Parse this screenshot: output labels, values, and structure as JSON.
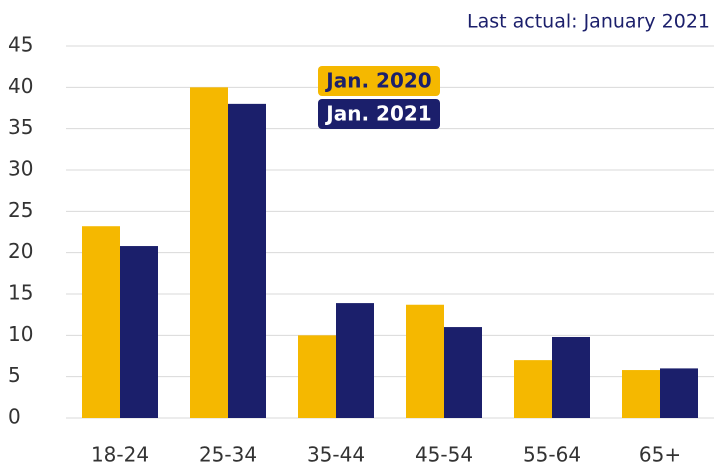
{
  "chart_data": {
    "type": "bar",
    "subtitle": "Last actual: January 2021",
    "categories": [
      "18-24",
      "25-34",
      "35-44",
      "45-54",
      "55-64",
      "65+"
    ],
    "series": [
      {
        "name": "Jan. 2020",
        "color": "#f5b800",
        "values": [
          23.2,
          40,
          10,
          13.7,
          7,
          5.8
        ]
      },
      {
        "name": "Jan. 2021",
        "color": "#1b1f6b",
        "values": [
          20.8,
          38,
          13.9,
          11,
          9.8,
          6
        ]
      }
    ],
    "ylim": [
      0,
      45
    ],
    "yticks": [
      0,
      5,
      10,
      15,
      20,
      25,
      30,
      35,
      40,
      45
    ],
    "grid": true
  }
}
